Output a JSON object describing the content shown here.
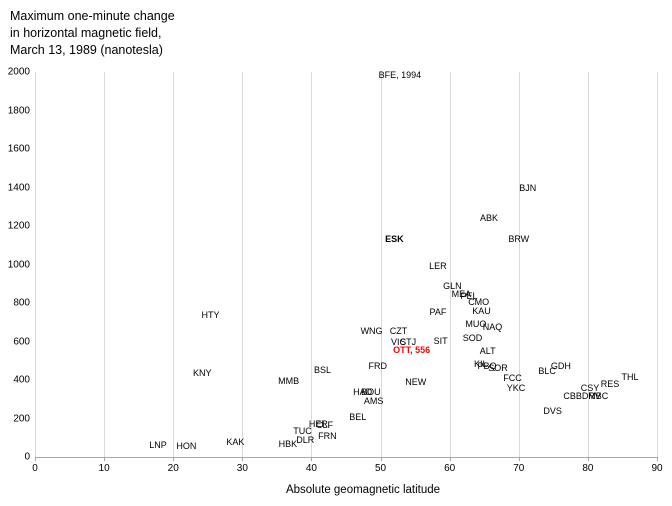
{
  "title": "Maximum one-minute change\nin horizontal magnetic field,\nMarch 13, 1989 (nanotesla)",
  "chart_data": {
    "type": "scatter",
    "title": "Maximum one-minute change in horizontal magnetic field, March 13, 1989 (nanotesla)",
    "xlabel": "Absolute geomagnetic latitude",
    "ylabel": "",
    "xlim": [
      0,
      90
    ],
    "ylim": [
      0,
      2000
    ],
    "x_ticks": [
      0,
      10,
      20,
      30,
      40,
      50,
      60,
      70,
      80,
      90
    ],
    "y_ticks": [
      0,
      200,
      400,
      600,
      800,
      1000,
      1200,
      1400,
      1600,
      1800,
      2000
    ],
    "grid": "vertical-only",
    "legend": "none",
    "marker_style": "station-code-labels",
    "highlight_color": "#ff0000",
    "points": [
      {
        "label": "BFE, 1994",
        "x": 52.8,
        "y": 1985
      },
      {
        "label": "BJN",
        "x": 71.3,
        "y": 1400
      },
      {
        "label": "ABK",
        "x": 65.7,
        "y": 1240
      },
      {
        "label": "BRW",
        "x": 70.0,
        "y": 1130
      },
      {
        "label": "ESK",
        "x": 52.0,
        "y": 1130,
        "bold": true
      },
      {
        "label": "LER",
        "x": 58.3,
        "y": 990
      },
      {
        "label": "GLN",
        "x": 60.4,
        "y": 890
      },
      {
        "label": "MEA",
        "x": 61.7,
        "y": 845
      },
      {
        "label": "PEL",
        "x": 62.8,
        "y": 838
      },
      {
        "label": "CMO",
        "x": 64.2,
        "y": 805
      },
      {
        "label": "KAU",
        "x": 64.6,
        "y": 758
      },
      {
        "label": "PAF",
        "x": 58.3,
        "y": 753
      },
      {
        "label": "HTY",
        "x": 25.4,
        "y": 738
      },
      {
        "label": "MUO",
        "x": 63.8,
        "y": 690
      },
      {
        "label": "NAQ",
        "x": 66.2,
        "y": 675
      },
      {
        "label": "CZT",
        "x": 52.6,
        "y": 655
      },
      {
        "label": "WNG",
        "x": 48.7,
        "y": 652
      },
      {
        "label": "SOD",
        "x": 63.3,
        "y": 618
      },
      {
        "label": "SIT",
        "x": 58.7,
        "y": 603
      },
      {
        "label": "VIC",
        "x": 52.6,
        "y": 597
      },
      {
        "label": "STJ",
        "x": 54.0,
        "y": 595
      },
      {
        "label": "OTT, 556",
        "x": 54.5,
        "y": 556,
        "color": "#ff0000",
        "bold": true
      },
      {
        "label": "ALT",
        "x": 65.5,
        "y": 551
      },
      {
        "label": "KIL",
        "x": 64.5,
        "y": 483
      },
      {
        "label": "GDH",
        "x": 76.1,
        "y": 473
      },
      {
        "label": "PBQ",
        "x": 65.4,
        "y": 473
      },
      {
        "label": "FRD",
        "x": 49.6,
        "y": 472
      },
      {
        "label": "SOR",
        "x": 67.0,
        "y": 462
      },
      {
        "label": "BSL",
        "x": 41.6,
        "y": 452
      },
      {
        "label": "BLC",
        "x": 74.1,
        "y": 447
      },
      {
        "label": "KNY",
        "x": 24.2,
        "y": 436
      },
      {
        "label": "THL",
        "x": 86.1,
        "y": 416
      },
      {
        "label": "FCC",
        "x": 69.1,
        "y": 410
      },
      {
        "label": "MMB",
        "x": 36.7,
        "y": 395
      },
      {
        "label": "NEW",
        "x": 55.1,
        "y": 390
      },
      {
        "label": "RES",
        "x": 83.2,
        "y": 379
      },
      {
        "label": "YKC",
        "x": 69.6,
        "y": 358
      },
      {
        "label": "CSY",
        "x": 80.3,
        "y": 358
      },
      {
        "label": "HAD",
        "x": 47.4,
        "y": 338
      },
      {
        "label": "BOU",
        "x": 48.6,
        "y": 338
      },
      {
        "label": "CBB",
        "x": 77.8,
        "y": 317
      },
      {
        "label": "DRV",
        "x": 80.5,
        "y": 317
      },
      {
        "label": "MBC",
        "x": 81.5,
        "y": 317
      },
      {
        "label": "AMS",
        "x": 49.0,
        "y": 291
      },
      {
        "label": "DVS",
        "x": 74.9,
        "y": 240
      },
      {
        "label": "BEL",
        "x": 46.7,
        "y": 208
      },
      {
        "label": "HER",
        "x": 41.0,
        "y": 171
      },
      {
        "label": "CLF",
        "x": 41.9,
        "y": 166
      },
      {
        "label": "TUC",
        "x": 38.7,
        "y": 134
      },
      {
        "label": "FRN",
        "x": 42.3,
        "y": 109
      },
      {
        "label": "DLR",
        "x": 39.1,
        "y": 88
      },
      {
        "label": "KAK",
        "x": 29.0,
        "y": 78
      },
      {
        "label": "HBK",
        "x": 36.6,
        "y": 68
      },
      {
        "label": "LNP",
        "x": 17.8,
        "y": 62
      },
      {
        "label": "HON",
        "x": 21.9,
        "y": 57
      }
    ]
  }
}
